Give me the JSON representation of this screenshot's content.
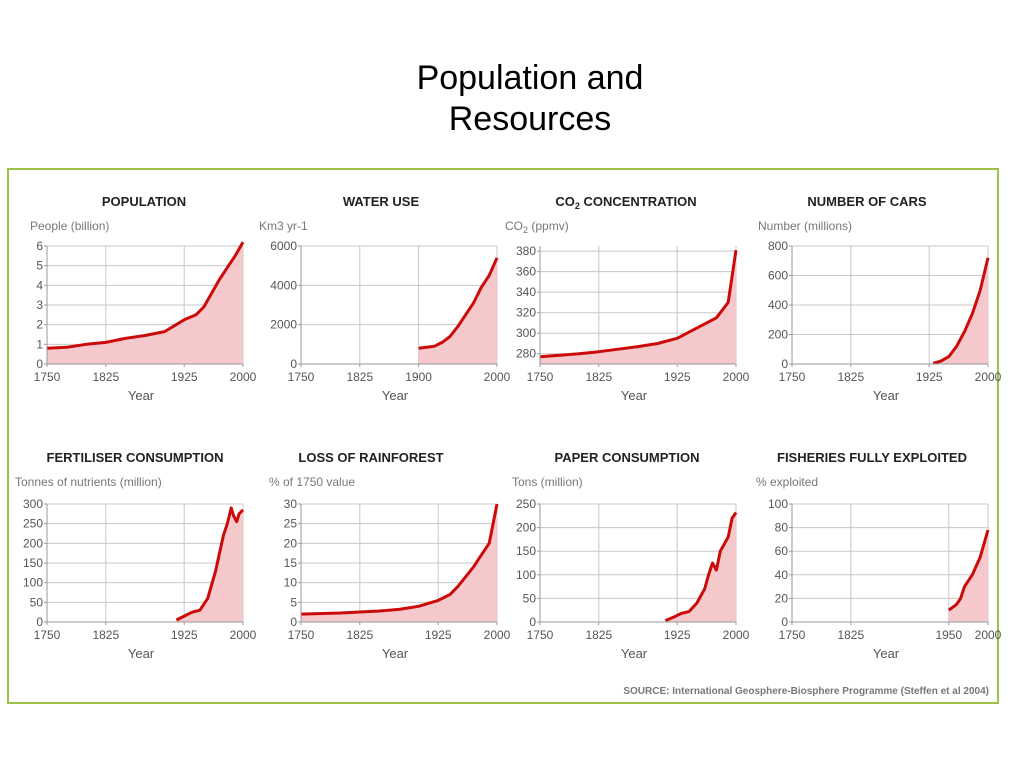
{
  "title": {
    "line1": "Population and",
    "line2": "Resources"
  },
  "source": "SOURCE:  International Geosphere-Biosphere Programme (Steffen et al 2004)",
  "colors": {
    "line": "#cc0a0a",
    "fill": "#f5c9cb",
    "frame": "#9ac244",
    "grid": "#c8c8c8",
    "axis_text": "#555555"
  },
  "chart_data": [
    {
      "type": "area",
      "title": "POPULATION",
      "ylabel": "People (billion)",
      "xlabel": "Year",
      "xlim": [
        1750,
        2000
      ],
      "ylim": [
        0,
        6
      ],
      "xticks": [
        "1750",
        "1825",
        "1925",
        "2000"
      ],
      "yticks": [
        "0",
        "1",
        "2",
        "3",
        "4",
        "5",
        "6"
      ],
      "x": [
        1750,
        1775,
        1800,
        1825,
        1850,
        1875,
        1900,
        1925,
        1940,
        1950,
        1960,
        1970,
        1980,
        1990,
        2000
      ],
      "y": [
        0.8,
        0.85,
        1.0,
        1.1,
        1.3,
        1.45,
        1.65,
        2.25,
        2.5,
        2.9,
        3.6,
        4.3,
        4.9,
        5.5,
        6.2
      ]
    },
    {
      "type": "area",
      "title": "WATER USE",
      "ylabel": "Km3 yr-1",
      "xlabel": "Year",
      "xlim": [
        1750,
        2000
      ],
      "ylim": [
        0,
        6000
      ],
      "xticks": [
        "1750",
        "1825",
        "1900",
        "2000"
      ],
      "yticks": [
        "0",
        "2000",
        "4000",
        "6000"
      ],
      "x": [
        1900,
        1910,
        1920,
        1930,
        1940,
        1950,
        1960,
        1970,
        1980,
        1990,
        2000
      ],
      "y": [
        800,
        850,
        900,
        1100,
        1400,
        1900,
        2500,
        3100,
        3900,
        4500,
        5400
      ]
    },
    {
      "type": "area",
      "title": "CO",
      "title_sub": "2",
      "title_rest": " CONCENTRATION",
      "ylabel": "CO",
      "ylabel_sub": "2",
      "ylabel_rest": " (ppmv)",
      "xlabel": "Year",
      "xlim": [
        1750,
        2000
      ],
      "ylim": [
        270,
        385
      ],
      "xticks": [
        "1750",
        "1825",
        "1925",
        "2000"
      ],
      "yticks": [
        "280",
        "300",
        "320",
        "340",
        "360",
        "380"
      ],
      "x": [
        1750,
        1800,
        1825,
        1875,
        1900,
        1925,
        1950,
        1975,
        1990,
        2000
      ],
      "y": [
        277,
        280,
        282,
        287,
        290,
        295,
        305,
        315,
        330,
        381
      ]
    },
    {
      "type": "area",
      "title": "NUMBER OF CARS",
      "ylabel": "Number (millions)",
      "xlabel": "Year",
      "xlim": [
        1750,
        2000
      ],
      "ylim": [
        0,
        800
      ],
      "xticks": [
        "1750",
        "1825",
        "1925",
        "2000"
      ],
      "yticks": [
        "0",
        "200",
        "400",
        "600",
        "800"
      ],
      "x": [
        1930,
        1940,
        1950,
        1960,
        1970,
        1980,
        1990,
        2000
      ],
      "y": [
        5,
        20,
        50,
        120,
        220,
        340,
        500,
        720
      ]
    },
    {
      "type": "area",
      "title": "FERTILISER CONSUMPTION",
      "ylabel": "Tonnes of nutrients (million)",
      "xlabel": "Year",
      "xlim": [
        1750,
        2000
      ],
      "ylim": [
        0,
        300
      ],
      "xticks": [
        "1750",
        "1825",
        "1925",
        "2000"
      ],
      "yticks": [
        "0",
        "50",
        "100",
        "150",
        "200",
        "250",
        "300"
      ],
      "x": [
        1915,
        1925,
        1935,
        1945,
        1955,
        1965,
        1975,
        1980,
        1985,
        1988,
        1992,
        1995,
        2000
      ],
      "y": [
        5,
        15,
        25,
        30,
        60,
        130,
        220,
        250,
        290,
        270,
        255,
        275,
        285
      ]
    },
    {
      "type": "area",
      "title": "LOSS OF RAINFOREST",
      "ylabel": "% of 1750 value",
      "xlabel": "Year",
      "xlim": [
        1750,
        2000
      ],
      "ylim": [
        0,
        30
      ],
      "xticks": [
        "1750",
        "1825",
        "1925",
        "2000"
      ],
      "yticks": [
        "0",
        "5",
        "10",
        "15",
        "20",
        "25",
        "30"
      ],
      "x": [
        1750,
        1800,
        1850,
        1875,
        1900,
        1925,
        1940,
        1950,
        1960,
        1970,
        1980,
        1990,
        2000
      ],
      "y": [
        2,
        2.3,
        2.8,
        3.2,
        4,
        5.5,
        7,
        9,
        11.5,
        14,
        17,
        20,
        30
      ]
    },
    {
      "type": "area",
      "title": "PAPER CONSUMPTION",
      "ylabel": "Tons (million)",
      "xlabel": "Year",
      "xlim": [
        1750,
        2000
      ],
      "ylim": [
        0,
        250
      ],
      "xticks": [
        "1750",
        "1825",
        "1925",
        "2000"
      ],
      "yticks": [
        "0",
        "50",
        "100",
        "150",
        "200",
        "250"
      ],
      "x": [
        1910,
        1920,
        1930,
        1940,
        1950,
        1960,
        1965,
        1970,
        1975,
        1980,
        1990,
        1995,
        2000
      ],
      "y": [
        3,
        10,
        18,
        22,
        40,
        70,
        100,
        125,
        110,
        150,
        180,
        220,
        232
      ]
    },
    {
      "type": "area",
      "title": "FISHERIES FULLY EXPLOITED",
      "ylabel": "% exploited",
      "xlabel": "Year",
      "xlim": [
        1750,
        2000
      ],
      "ylim": [
        0,
        100
      ],
      "xticks": [
        "1750",
        "1825",
        "1950",
        "2000"
      ],
      "yticks": [
        "0",
        "20",
        "40",
        "60",
        "80",
        "100"
      ],
      "x": [
        1950,
        1960,
        1965,
        1970,
        1975,
        1980,
        1990,
        2000
      ],
      "y": [
        10,
        15,
        20,
        30,
        35,
        40,
        55,
        78
      ]
    }
  ]
}
